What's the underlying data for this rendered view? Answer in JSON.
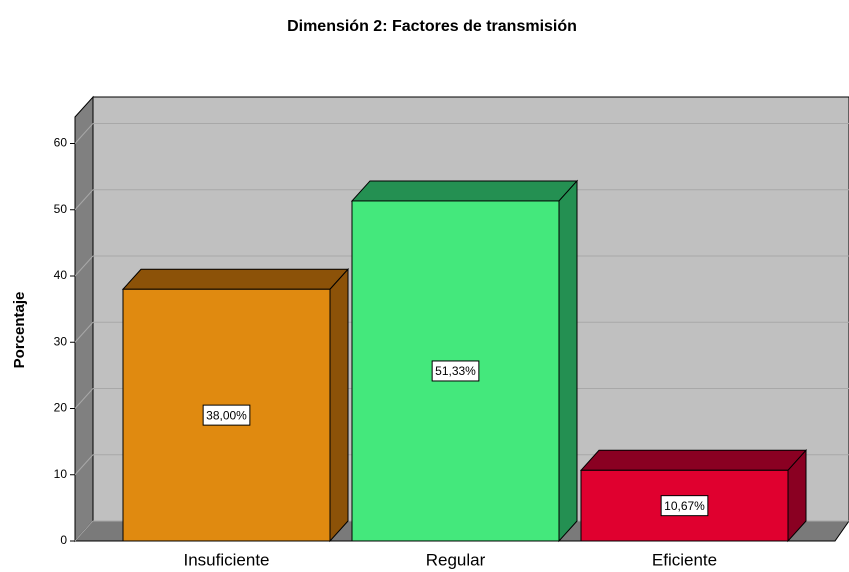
{
  "chart_data": {
    "type": "bar3d",
    "title": "Dimensión 2:  Factores de transmisión",
    "y_label": "Porcentaje",
    "categories": [
      "Insuficiente",
      "Regular",
      "Eficiente"
    ],
    "values": [
      38.0,
      51.33,
      10.67
    ],
    "value_labels": [
      "38,00%",
      "51,33%",
      "10,67%"
    ],
    "colors": [
      "#e08a10",
      "#44e87c",
      "#e0002f"
    ],
    "side_colors": [
      "#8c5208",
      "#249052",
      "#8a0022"
    ],
    "ylim": [
      0,
      64
    ],
    "yticks": [
      0,
      10,
      20,
      30,
      40,
      50,
      60
    ],
    "grid": true
  }
}
